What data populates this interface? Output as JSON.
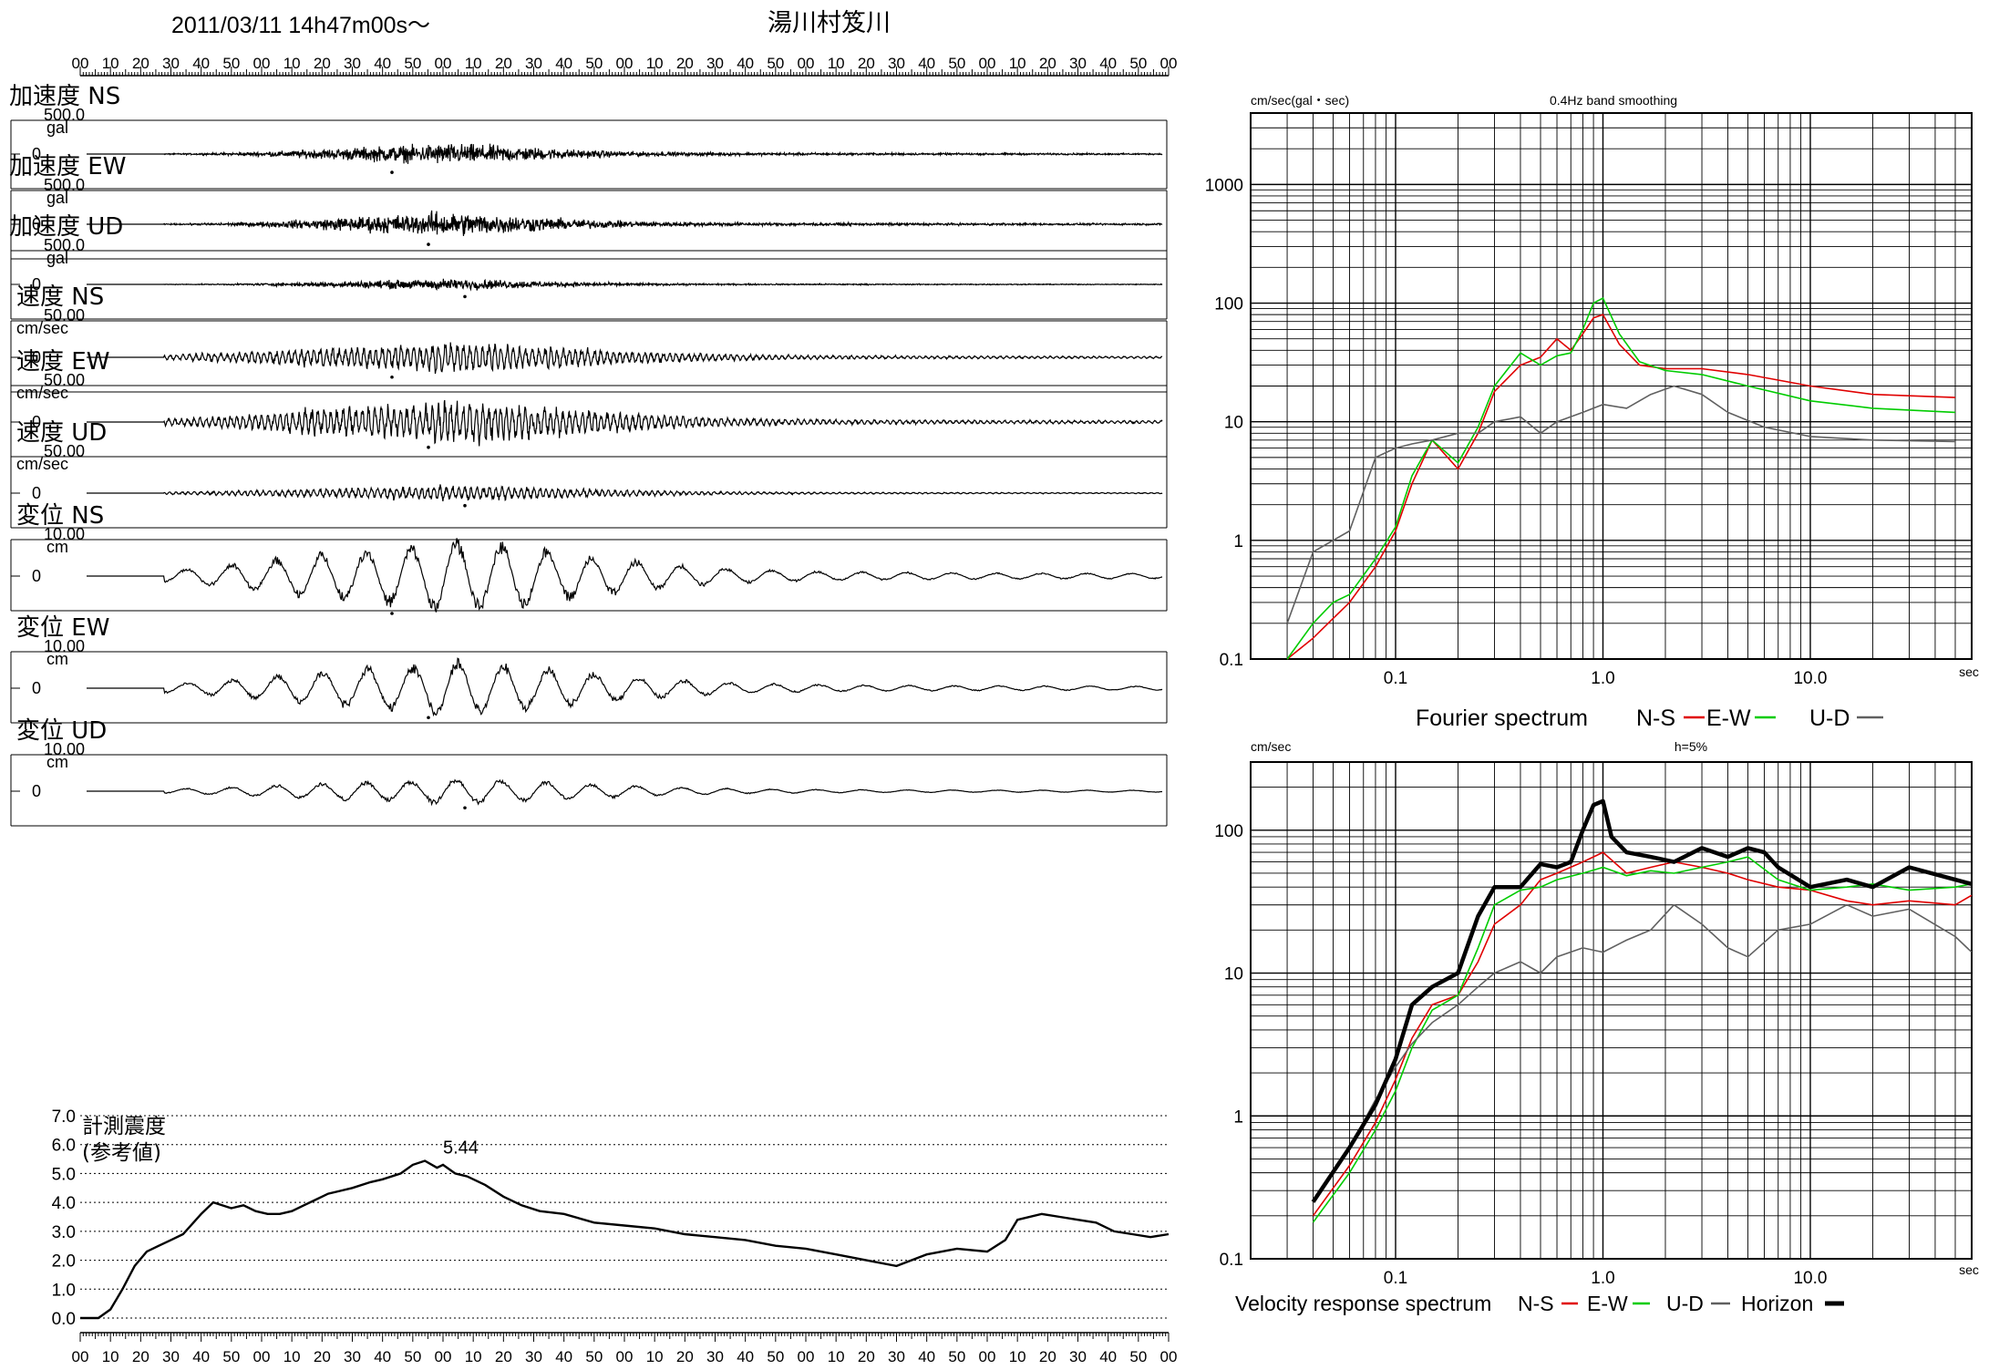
{
  "header": {
    "datetime": "2011/03/11  14h47m00s〜",
    "station": "湯川村笈川"
  },
  "time_ticks": [
    "00",
    "10",
    "20",
    "30",
    "40",
    "50",
    "00",
    "10",
    "20",
    "30",
    "40",
    "50",
    "00",
    "10",
    "20",
    "30",
    "40",
    "50",
    "00",
    "10",
    "20",
    "30",
    "40",
    "50",
    "00",
    "10",
    "20",
    "30",
    "40",
    "50",
    "00",
    "10",
    "20",
    "30",
    "40",
    "50",
    "00"
  ],
  "waveforms": [
    {
      "label": "加速度 NS",
      "max_label": "500.0",
      "unit": "gal",
      "zero_label": "0",
      "peak": 0.42,
      "kind": "acc"
    },
    {
      "label": "加速度 EW",
      "max_label": "500.0",
      "unit": "gal",
      "zero_label": "0",
      "peak": 0.48,
      "kind": "acc"
    },
    {
      "label": "加速度 UD",
      "max_label": "500.0",
      "unit": "gal",
      "zero_label": "0",
      "peak": 0.22,
      "kind": "acc"
    },
    {
      "label": "速度 NS",
      "max_label": "50.00",
      "unit": "cm/sec",
      "zero_label": "0",
      "peak": 0.45,
      "kind": "vel"
    },
    {
      "label": "速度 EW",
      "max_label": "50.00",
      "unit": "cm/sec",
      "zero_label": "0",
      "peak": 0.62,
      "kind": "vel"
    },
    {
      "label": "速度 UD",
      "max_label": "50.00",
      "unit": "cm/sec",
      "zero_label": "0",
      "peak": 0.22,
      "kind": "vel"
    },
    {
      "label": "変位 NS",
      "max_label": "10.00",
      "unit": "cm",
      "zero_label": "0",
      "peak": 1.0,
      "kind": "disp"
    },
    {
      "label": "変位 EW",
      "max_label": "10.00",
      "unit": "cm",
      "zero_label": "0",
      "peak": 0.75,
      "kind": "disp"
    },
    {
      "label": "変位 UD",
      "max_label": "10.00",
      "unit": "cm",
      "zero_label": "0",
      "peak": 0.35,
      "kind": "disp"
    }
  ],
  "chart_data": [
    {
      "type": "line",
      "title": "計測震度 (参考値)",
      "title_lines": [
        "計測震度",
        "(参考値)"
      ],
      "yticks": [
        "7.0",
        "6.0",
        "5.0",
        "4.0",
        "3.0",
        "2.0",
        "1.0",
        "0.0"
      ],
      "ylim": [
        0,
        7
      ],
      "xlim_s": [
        0,
        360
      ],
      "peak_label": "5.44",
      "peak_value": 5.44,
      "peak_time_s": 120,
      "x_s": [
        0,
        6,
        10,
        14,
        18,
        22,
        26,
        30,
        34,
        40,
        44,
        50,
        54,
        58,
        62,
        66,
        70,
        74,
        78,
        82,
        86,
        90,
        96,
        100,
        106,
        110,
        114,
        118,
        120,
        124,
        128,
        134,
        140,
        146,
        152,
        160,
        170,
        180,
        190,
        200,
        210,
        220,
        230,
        240,
        250,
        260,
        270,
        280,
        290,
        300,
        306,
        310,
        318,
        324,
        330,
        336,
        342,
        348,
        354,
        360
      ],
      "y": [
        0,
        0,
        0.3,
        1.0,
        1.8,
        2.3,
        2.5,
        2.7,
        2.9,
        3.6,
        4.0,
        3.8,
        3.9,
        3.7,
        3.6,
        3.6,
        3.7,
        3.9,
        4.1,
        4.3,
        4.4,
        4.5,
        4.7,
        4.8,
        5.0,
        5.3,
        5.44,
        5.2,
        5.3,
        5.0,
        4.9,
        4.6,
        4.2,
        3.9,
        3.7,
        3.6,
        3.3,
        3.2,
        3.1,
        2.9,
        2.8,
        2.7,
        2.5,
        2.4,
        2.2,
        2.0,
        1.8,
        2.2,
        2.4,
        2.3,
        2.7,
        3.4,
        3.6,
        3.5,
        3.4,
        3.3,
        3.0,
        2.9,
        2.8,
        2.9
      ]
    },
    {
      "type": "line",
      "title": "0.4Hz band smoothing",
      "unit_label": "cm/sec(gal・sec)",
      "xlabel": "sec",
      "caption": "Fourier spectrum",
      "legend": [
        "N-S",
        "E-W",
        "U-D"
      ],
      "log_x": true,
      "log_y": true,
      "xlim": [
        0.02,
        60
      ],
      "ylim": [
        0.1,
        4000
      ],
      "xtick_labels": [
        "0.1",
        "1.0",
        "10.0"
      ],
      "ytick_labels": [
        "1000",
        "100",
        "10",
        "1",
        "0.1"
      ],
      "colors": {
        "N-S": "#e00000",
        "E-W": "#00cc00",
        "U-D": "#606060"
      },
      "series": [
        {
          "name": "N-S",
          "x": [
            0.03,
            0.04,
            0.05,
            0.06,
            0.08,
            0.1,
            0.12,
            0.15,
            0.2,
            0.25,
            0.3,
            0.4,
            0.5,
            0.6,
            0.7,
            0.8,
            0.9,
            1.0,
            1.2,
            1.5,
            2,
            3,
            5,
            10,
            20,
            50
          ],
          "y": [
            0.1,
            0.15,
            0.22,
            0.3,
            0.6,
            1.2,
            3,
            7,
            4,
            8,
            18,
            30,
            35,
            50,
            40,
            55,
            75,
            80,
            45,
            30,
            28,
            28,
            25,
            20,
            17,
            16
          ]
        },
        {
          "name": "E-W",
          "x": [
            0.03,
            0.04,
            0.05,
            0.06,
            0.08,
            0.1,
            0.12,
            0.15,
            0.2,
            0.25,
            0.3,
            0.4,
            0.5,
            0.6,
            0.7,
            0.8,
            0.9,
            1.0,
            1.2,
            1.5,
            2,
            3,
            5,
            10,
            20,
            50
          ],
          "y": [
            0.1,
            0.2,
            0.3,
            0.35,
            0.7,
            1.3,
            3.5,
            7,
            4.5,
            9,
            20,
            38,
            30,
            36,
            38,
            60,
            100,
            110,
            55,
            32,
            27,
            25,
            20,
            15,
            13,
            12
          ]
        },
        {
          "name": "U-D",
          "x": [
            0.03,
            0.04,
            0.05,
            0.06,
            0.08,
            0.1,
            0.12,
            0.15,
            0.2,
            0.25,
            0.3,
            0.4,
            0.5,
            0.6,
            0.8,
            1.0,
            1.3,
            1.7,
            2.2,
            3,
            4,
            6,
            10,
            20,
            50
          ],
          "y": [
            0.2,
            0.8,
            1.0,
            1.2,
            5,
            6,
            6.5,
            7,
            8,
            8,
            10,
            11,
            8,
            10,
            12,
            14,
            13,
            17,
            20,
            17,
            12,
            9,
            7.5,
            7,
            6.8
          ]
        }
      ]
    },
    {
      "type": "line",
      "title": "h=5%",
      "unit_label": "cm/sec",
      "xlabel": "sec",
      "caption": "Velocity response spectrum",
      "legend": [
        "N-S",
        "E-W",
        "U-D",
        "Horizon"
      ],
      "log_x": true,
      "log_y": true,
      "xlim": [
        0.02,
        60
      ],
      "ylim": [
        0.1,
        300
      ],
      "xtick_labels": [
        "0.1",
        "1.0",
        "10.0"
      ],
      "ytick_labels": [
        "100",
        "10",
        "1",
        "0.1"
      ],
      "colors": {
        "N-S": "#e00000",
        "E-W": "#00cc00",
        "U-D": "#606060",
        "Horizon": "#000000"
      },
      "series": [
        {
          "name": "N-S",
          "x": [
            0.04,
            0.06,
            0.08,
            0.1,
            0.12,
            0.15,
            0.2,
            0.25,
            0.3,
            0.4,
            0.5,
            0.6,
            0.8,
            1.0,
            1.3,
            1.7,
            2.2,
            3,
            4,
            5,
            7,
            10,
            15,
            20,
            30,
            50,
            60
          ],
          "y": [
            0.2,
            0.45,
            0.9,
            1.8,
            3.5,
            6,
            7,
            12,
            22,
            30,
            45,
            50,
            60,
            70,
            50,
            55,
            60,
            55,
            50,
            45,
            40,
            38,
            32,
            30,
            32,
            30,
            35
          ]
        },
        {
          "name": "E-W",
          "x": [
            0.04,
            0.06,
            0.08,
            0.1,
            0.12,
            0.15,
            0.2,
            0.25,
            0.3,
            0.4,
            0.5,
            0.6,
            0.8,
            1.0,
            1.3,
            1.7,
            2.2,
            3,
            4,
            5,
            7,
            10,
            15,
            20,
            30,
            50,
            60
          ],
          "y": [
            0.18,
            0.4,
            0.8,
            1.5,
            3,
            5.5,
            7,
            15,
            30,
            38,
            40,
            45,
            50,
            55,
            48,
            52,
            50,
            55,
            60,
            65,
            45,
            38,
            40,
            42,
            38,
            40,
            42
          ]
        },
        {
          "name": "U-D",
          "x": [
            0.04,
            0.06,
            0.08,
            0.1,
            0.12,
            0.15,
            0.2,
            0.25,
            0.3,
            0.4,
            0.5,
            0.6,
            0.8,
            1.0,
            1.3,
            1.7,
            2.2,
            3,
            4,
            5,
            7,
            10,
            15,
            20,
            30,
            50,
            60
          ],
          "y": [
            0.25,
            0.6,
            1.3,
            2.2,
            3.2,
            4.5,
            6,
            8,
            10,
            12,
            10,
            13,
            15,
            14,
            17,
            20,
            30,
            22,
            15,
            13,
            20,
            22,
            30,
            25,
            28,
            18,
            14
          ]
        },
        {
          "name": "Horizon",
          "x": [
            0.04,
            0.06,
            0.08,
            0.1,
            0.12,
            0.15,
            0.2,
            0.25,
            0.3,
            0.4,
            0.5,
            0.6,
            0.7,
            0.8,
            0.9,
            1.0,
            1.1,
            1.3,
            1.7,
            2.2,
            3,
            4,
            5,
            6,
            7,
            10,
            15,
            20,
            30,
            50,
            60
          ],
          "y": [
            0.25,
            0.6,
            1.2,
            2.5,
            6,
            8,
            10,
            25,
            40,
            40,
            58,
            55,
            60,
            100,
            150,
            160,
            90,
            70,
            65,
            60,
            75,
            65,
            75,
            70,
            55,
            40,
            45,
            40,
            55,
            45,
            42
          ]
        }
      ]
    }
  ]
}
